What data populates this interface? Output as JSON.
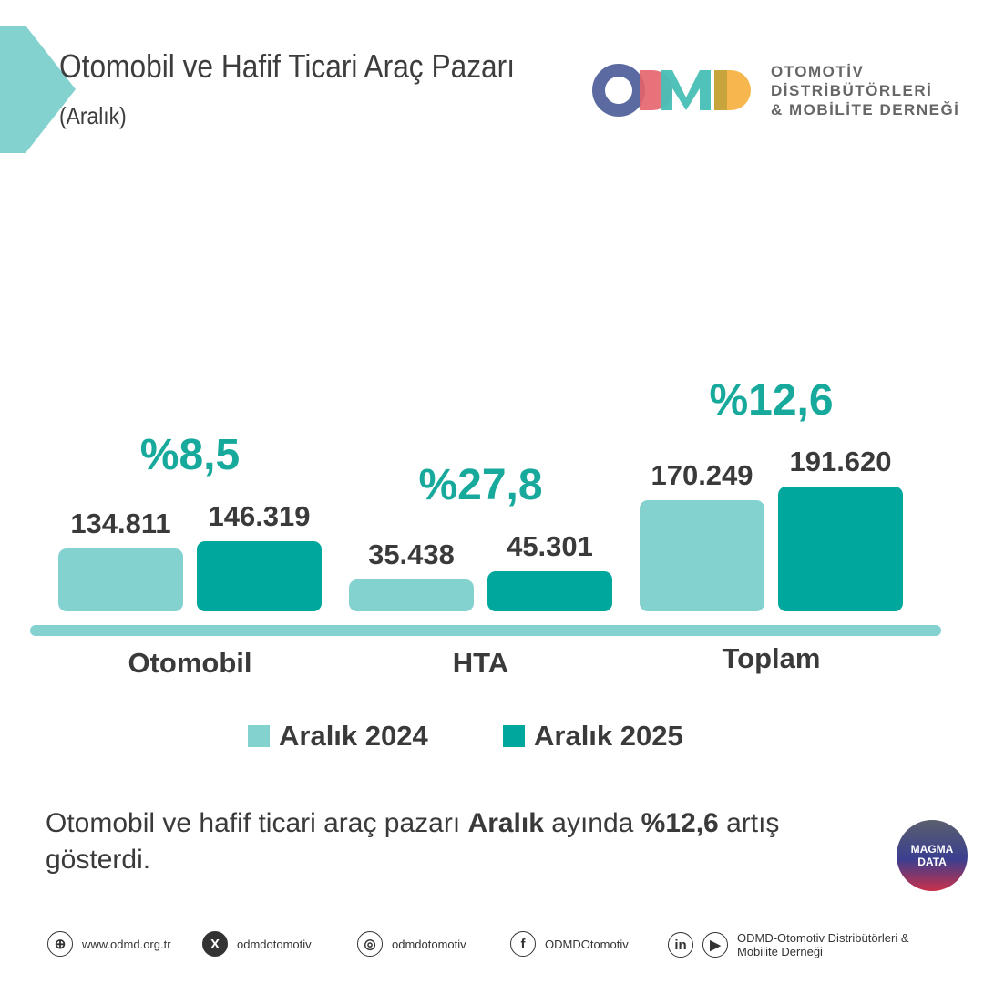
{
  "header": {
    "title": "Otomobil ve Hafif Ticari Araç Pazarı",
    "subtitle": "(Aralık)"
  },
  "logo": {
    "mark": "ODMD",
    "lines": [
      "OTOMOTİV",
      "DİSTRİBÜTÖRLERİ",
      "& MOBİLİTE DERNEĞİ"
    ]
  },
  "chart_data": {
    "type": "bar",
    "categories": [
      "Otomobil",
      "HTA",
      "Toplam"
    ],
    "series": [
      {
        "name": "Aralık 2024",
        "color": "#84d2cf",
        "values": [
          134811,
          35438,
          170249
        ],
        "labels": [
          "134.811",
          "35.438",
          "170.249"
        ]
      },
      {
        "name": "Aralık 2025",
        "color": "#00a79d",
        "values": [
          146319,
          45301,
          191620
        ],
        "labels": [
          "146.319",
          "45.301",
          "191.620"
        ]
      }
    ],
    "changes": [
      "%8,5",
      "%27,8",
      "%12,6"
    ],
    "legend": "bottom"
  },
  "summary": {
    "pre": "Otomobil ve hafif ticari araç pazarı ",
    "bold1": "Aralık",
    "mid": " ayında ",
    "bold2": "%12,6",
    "post": " artış gösterdi."
  },
  "badge": {
    "line1": "MAGMA",
    "line2": "DATA"
  },
  "footer": {
    "web": "www.odmd.org.tr",
    "x": "odmdotomotiv",
    "instagram": "odmdotomotiv",
    "facebook": "ODMDOtomotiv",
    "linkedin_youtube": "ODMD-Otomotiv Distribütörleri & Mobilite Derneği"
  }
}
